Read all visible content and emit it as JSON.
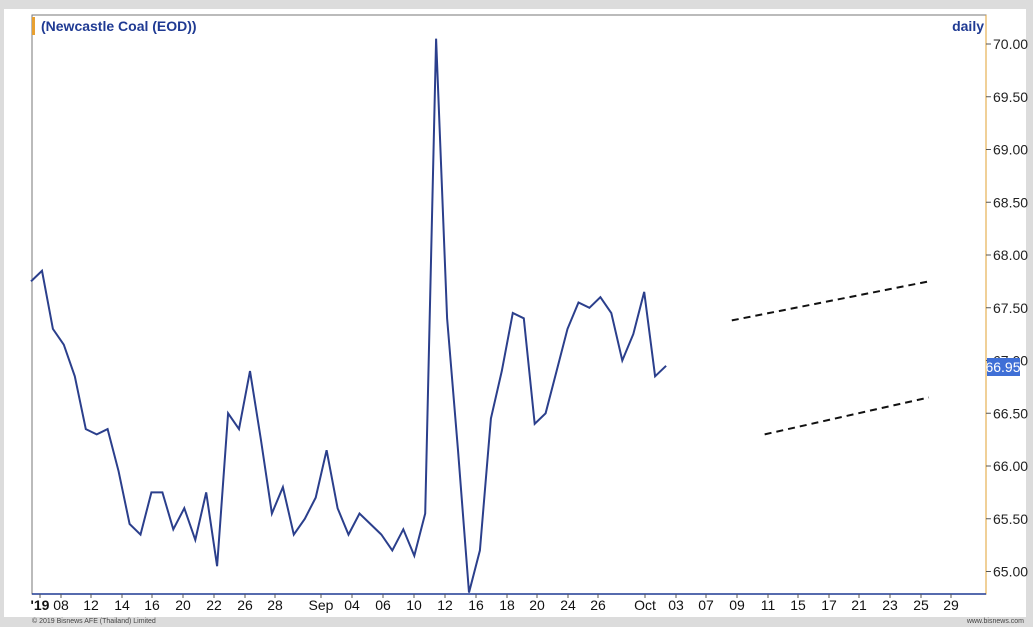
{
  "chart_data": {
    "type": "line",
    "title": "(Newcastle Coal (EOD))",
    "frequency_label": "daily",
    "ylim": [
      64.8,
      70.2
    ],
    "y_ticks": [
      "70.00",
      "69.50",
      "69.00",
      "68.50",
      "68.00",
      "67.50",
      "67.00",
      "66.50",
      "66.00",
      "65.50",
      "65.00"
    ],
    "x_tick_labels": [
      "'19",
      "08",
      "12",
      "14",
      "16",
      "20",
      "22",
      "26",
      "28",
      "Sep",
      "04",
      "06",
      "10",
      "12",
      "16",
      "18",
      "20",
      "24",
      "26",
      "Oct",
      "03",
      "07",
      "09",
      "11",
      "15",
      "17",
      "21",
      "23",
      "25",
      "29"
    ],
    "last_value_label": "66.95",
    "series": [
      {
        "values": [
          67.75,
          67.85,
          67.3,
          67.15,
          66.85,
          66.35,
          66.3,
          66.35,
          65.95,
          65.45,
          65.35,
          65.75,
          65.75,
          65.4,
          65.6,
          65.3,
          65.75,
          65.05,
          66.5,
          66.35,
          66.9,
          66.25,
          65.55,
          65.8,
          65.35,
          65.5,
          65.7,
          66.15,
          65.6,
          65.35,
          65.55,
          65.45,
          65.35,
          65.2,
          65.4,
          65.15,
          65.55,
          70.05,
          67.4,
          66.15,
          64.8,
          65.2,
          66.45,
          66.9,
          67.45,
          67.4,
          66.4,
          66.5,
          66.9,
          67.3,
          67.55,
          67.5,
          67.6,
          67.45,
          67.0,
          67.25,
          67.65,
          66.85,
          66.95
        ]
      }
    ],
    "trendlines": [
      {
        "from": [
          64,
          67.38
        ],
        "to": [
          82,
          67.75
        ],
        "style": "dashed"
      },
      {
        "from": [
          67,
          66.3
        ],
        "to": [
          82,
          66.65
        ],
        "style": "dashed"
      }
    ],
    "background": "#ffffff",
    "line_color": "#2b3f8c",
    "label_box_color": "#3f6fd6"
  },
  "footer": {
    "copyright": "© 2019 Bisnews AFE (Thailand) Limited",
    "website": "www.bisnews.com"
  }
}
